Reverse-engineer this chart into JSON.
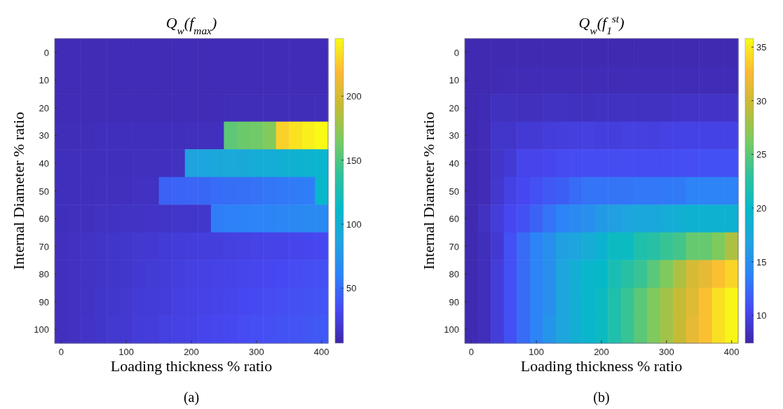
{
  "chart_data": [
    {
      "type": "heatmap",
      "title": "Q$_{w}$(f$_{max}$)",
      "xlabel": "Loading thickness % ratio",
      "ylabel": "Internal Diameter % ratio",
      "annotations": [
        "(a)"
      ],
      "categories": [
        "0",
        null,
        null,
        null,
        null,
        "100",
        null,
        null,
        null,
        null,
        "200",
        null,
        null,
        null,
        null,
        "300",
        null,
        null,
        null,
        null,
        "400"
      ],
      "y_categories": [
        "0",
        "10",
        "20",
        "30",
        "40",
        "50",
        "60",
        "70",
        "80",
        "90",
        "100"
      ],
      "cells": [
        [
          12,
          12,
          12,
          12,
          12,
          12,
          12,
          12,
          12,
          12,
          12,
          12,
          12,
          12,
          12,
          12,
          12,
          12,
          12,
          12,
          12
        ],
        [
          12,
          12,
          12,
          12,
          12,
          12,
          12,
          12,
          12,
          12,
          12,
          12,
          12,
          12,
          12,
          12,
          12,
          12,
          12,
          12,
          12
        ],
        [
          12,
          12,
          12,
          12,
          12,
          12,
          12,
          12,
          12,
          12,
          12,
          12,
          12,
          13,
          13,
          13,
          13,
          13,
          13,
          13,
          13
        ],
        [
          13,
          13,
          13,
          14,
          14,
          14,
          14,
          14,
          14,
          14,
          15,
          15,
          15,
          155,
          160,
          162,
          168,
          228,
          235,
          240,
          245
        ],
        [
          14,
          14,
          14,
          14,
          14,
          14,
          15,
          15,
          15,
          16,
          85,
          88,
          90,
          92,
          93,
          95,
          97,
          100,
          103,
          105,
          108
        ],
        [
          14,
          14,
          14,
          15,
          15,
          15,
          16,
          16,
          45,
          46,
          47,
          48,
          50,
          51,
          52,
          53,
          55,
          56,
          57,
          58,
          110
        ],
        [
          14,
          15,
          15,
          16,
          16,
          17,
          17,
          18,
          18,
          19,
          19,
          20,
          58,
          60,
          61,
          62,
          63,
          64,
          65,
          66,
          67
        ],
        [
          15,
          16,
          17,
          18,
          19,
          20,
          21,
          22,
          23,
          24,
          25,
          26,
          26,
          27,
          28,
          29,
          30,
          30,
          31,
          32,
          33
        ],
        [
          15,
          16,
          17,
          18,
          19,
          20,
          22,
          23,
          24,
          26,
          27,
          28,
          29,
          30,
          31,
          32,
          33,
          34,
          35,
          36,
          37
        ],
        [
          15,
          16,
          17,
          19,
          20,
          21,
          23,
          24,
          25,
          27,
          28,
          29,
          30,
          31,
          33,
          34,
          35,
          36,
          37,
          38,
          39
        ],
        [
          15,
          16,
          18,
          19,
          21,
          22,
          24,
          25,
          27,
          28,
          29,
          31,
          32,
          33,
          35,
          36,
          37,
          38,
          39,
          40,
          41
        ]
      ],
      "clim": [
        7,
        245
      ],
      "cticks": [
        50,
        100,
        150,
        200
      ]
    },
    {
      "type": "heatmap",
      "title": "Q$_{w}$(f$_{1}$$^{st}$)",
      "xlabel": "Loading thickness % ratio",
      "ylabel": "Internal Diameter % ratio",
      "annotations": [
        "(b)"
      ],
      "categories": [
        "0",
        null,
        null,
        null,
        null,
        "100",
        null,
        null,
        null,
        null,
        "200",
        null,
        null,
        null,
        null,
        "300",
        null,
        null,
        null,
        null,
        "400"
      ],
      "y_categories": [
        "0",
        "10",
        "20",
        "30",
        "40",
        "50",
        "60",
        "70",
        "80",
        "90",
        "100"
      ],
      "cells": [
        [
          7.8,
          7.8,
          7.8,
          7.8,
          7.8,
          7.8,
          7.8,
          7.8,
          7.8,
          7.8,
          7.8,
          7.8,
          7.8,
          7.8,
          7.8,
          7.8,
          7.8,
          7.8,
          7.8,
          7.8,
          7.8
        ],
        [
          7.8,
          7.8,
          7.9,
          8,
          8,
          8,
          8,
          8,
          8,
          8,
          8,
          8,
          8,
          8,
          8,
          8,
          8,
          8,
          8,
          8,
          8
        ],
        [
          7.8,
          7.9,
          8.4,
          8.4,
          8.3,
          8.3,
          8.5,
          8.5,
          8.4,
          8.4,
          8.5,
          8.5,
          8.5,
          8.5,
          8.5,
          8.5,
          8.7,
          8.7,
          8.7,
          8.7,
          8.7
        ],
        [
          7.8,
          8,
          8.8,
          8.8,
          9.3,
          9.3,
          9.5,
          9.6,
          9.7,
          9.8,
          9.6,
          9.6,
          9.8,
          9.8,
          9.7,
          9.9,
          10,
          10,
          10,
          10,
          10
        ],
        [
          7.8,
          8,
          8.8,
          9.3,
          10.2,
          10.2,
          10.4,
          10.6,
          10.7,
          10.8,
          10.8,
          10.8,
          10.8,
          10.8,
          10.7,
          10.8,
          10.9,
          10.9,
          11,
          11,
          11
        ],
        [
          7.8,
          8,
          9,
          10,
          10.5,
          11,
          11.5,
          11.8,
          12.5,
          13,
          13,
          13,
          13,
          13.2,
          13.2,
          13.3,
          13.3,
          14,
          14,
          14,
          14
        ],
        [
          7.8,
          8.5,
          9.5,
          10.5,
          11,
          12,
          13,
          14,
          14.5,
          15,
          16,
          16.5,
          17,
          17.5,
          17.5,
          18,
          18.5,
          19,
          19,
          19,
          19
        ],
        [
          7.8,
          8.2,
          9.2,
          11,
          12.5,
          14,
          15,
          16.5,
          17,
          18,
          19,
          20.5,
          20.5,
          22,
          22.5,
          23.5,
          24,
          25.5,
          25.5,
          26.5,
          28.5
        ],
        [
          7.8,
          8.2,
          9.5,
          11,
          12.5,
          14,
          15,
          17,
          18.5,
          19.5,
          20,
          21.5,
          22.5,
          23.5,
          25,
          26.5,
          28.5,
          30.5,
          31.5,
          33,
          34
        ],
        [
          7.8,
          8.2,
          9.5,
          11,
          12.5,
          14,
          15,
          17,
          18.5,
          19.5,
          20.5,
          22,
          23.5,
          25,
          26.5,
          28,
          29.5,
          31,
          33,
          34.5,
          35.5
        ],
        [
          7.8,
          8.2,
          9.5,
          11,
          12.5,
          14,
          15.5,
          17,
          18.5,
          19.5,
          20.5,
          22,
          23.5,
          25,
          26.5,
          28,
          29.5,
          31.5,
          33,
          34.5,
          35.5
        ]
      ],
      "clim": [
        7.4,
        35.8
      ],
      "cticks": [
        10,
        15,
        20,
        25,
        30,
        35
      ]
    }
  ]
}
